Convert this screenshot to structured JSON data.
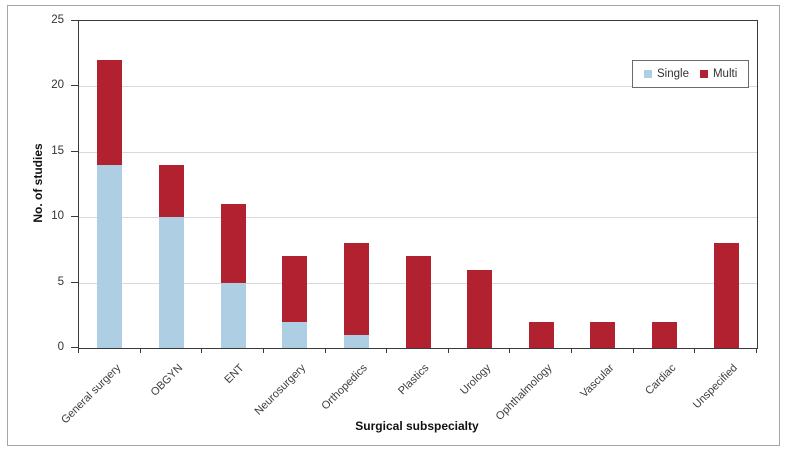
{
  "chart_data": {
    "type": "bar",
    "stacked": true,
    "title": "",
    "xlabel": "Surgical subspecialty",
    "ylabel": "No. of studies",
    "ylim": [
      0,
      25
    ],
    "yticks": [
      0,
      5,
      10,
      15,
      20,
      25
    ],
    "grid": "horizontal",
    "legend_position": "top-right",
    "categories": [
      "General surgery",
      "OBGYN",
      "ENT",
      "Neurosurgery",
      "Orthopedics",
      "Plastics",
      "Urology",
      "Ophthalmology",
      "Vascular",
      "Cardiac",
      "Unspecified"
    ],
    "series": [
      {
        "name": "Single",
        "color": "#AECFE3",
        "values": [
          14,
          10,
          5,
          2,
          1,
          0,
          0,
          0,
          0,
          0,
          0
        ]
      },
      {
        "name": "Multi",
        "color": "#B22130",
        "values": [
          8,
          4,
          6,
          5,
          7,
          7,
          6,
          2,
          2,
          2,
          8
        ]
      }
    ],
    "totals": [
      22,
      14,
      11,
      7,
      8,
      7,
      6,
      2,
      2,
      2,
      8
    ]
  },
  "colors": {
    "grid": "#d9d9d9",
    "axis": "#3a3a3a",
    "frame": "#a6a6a6",
    "tick_text": "#333333",
    "single": "#AECFE3",
    "multi": "#B22130"
  }
}
